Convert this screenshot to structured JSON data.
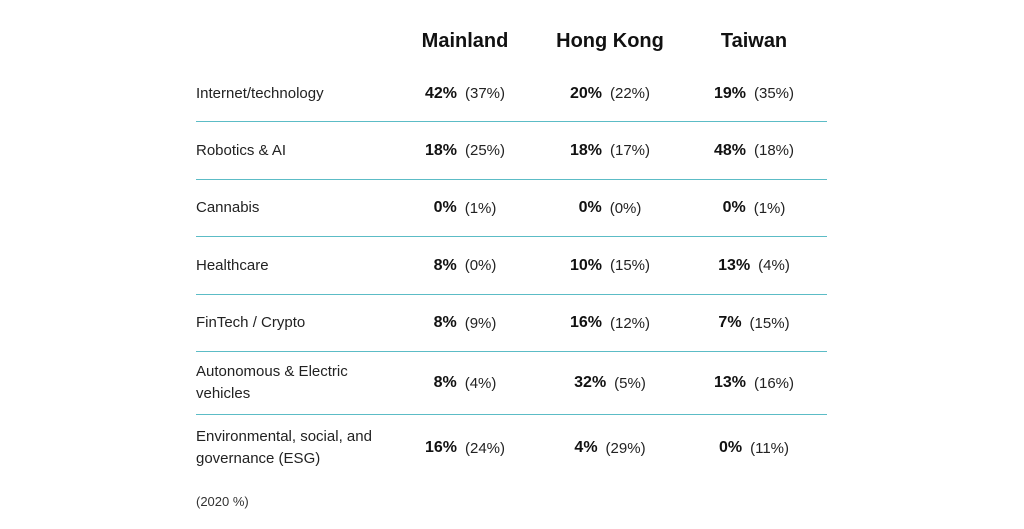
{
  "chart_data": {
    "type": "table",
    "columns": [
      "Mainland",
      "Hong Kong",
      "Taiwan"
    ],
    "rows": [
      {
        "label": "Internet/technology",
        "values": [
          {
            "current": "42%",
            "previous": "(37%)"
          },
          {
            "current": "20%",
            "previous": "(22%)"
          },
          {
            "current": "19%",
            "previous": "(35%)"
          }
        ]
      },
      {
        "label": "Robotics & AI",
        "values": [
          {
            "current": "18%",
            "previous": "(25%)"
          },
          {
            "current": "18%",
            "previous": "(17%)"
          },
          {
            "current": "48%",
            "previous": "(18%)"
          }
        ]
      },
      {
        "label": "Cannabis",
        "values": [
          {
            "current": "0%",
            "previous": "(1%)"
          },
          {
            "current": "0%",
            "previous": "(0%)"
          },
          {
            "current": "0%",
            "previous": "(1%)"
          }
        ]
      },
      {
        "label": "Healthcare",
        "values": [
          {
            "current": "8%",
            "previous": "(0%)"
          },
          {
            "current": "10%",
            "previous": "(15%)"
          },
          {
            "current": "13%",
            "previous": "(4%)"
          }
        ]
      },
      {
        "label": "FinTech / Crypto",
        "values": [
          {
            "current": "8%",
            "previous": "(9%)"
          },
          {
            "current": "16%",
            "previous": "(12%)"
          },
          {
            "current": "7%",
            "previous": "(15%)"
          }
        ]
      },
      {
        "label": "Autonomous & Electric vehicles",
        "values": [
          {
            "current": "8%",
            "previous": "(4%)"
          },
          {
            "current": "32%",
            "previous": "(5%)"
          },
          {
            "current": "13%",
            "previous": "(16%)"
          }
        ]
      },
      {
        "label": "Environmental, social, and governance (ESG)",
        "values": [
          {
            "current": "16%",
            "previous": "(24%)"
          },
          {
            "current": "4%",
            "previous": "(29%)"
          },
          {
            "current": "0%",
            "previous": "(11%)"
          }
        ]
      }
    ],
    "footnote": "(2020 %)",
    "divider_color": "#5cbcc6"
  }
}
